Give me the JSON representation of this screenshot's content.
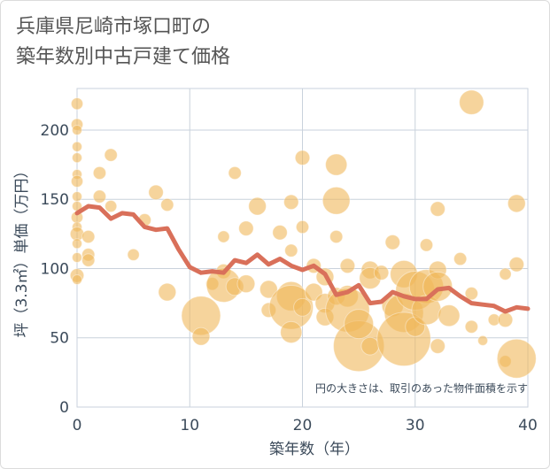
{
  "title_line1": "兵庫県尼崎市塚口町の",
  "title_line2": "築年数別中古戸建て価格",
  "chart_data": {
    "type": "scatter",
    "title": "兵庫県尼崎市塚口町の築年数別中古戸建て価格",
    "xlabel": "築年数（年）",
    "ylabel": "坪（3.3㎡）単価（万円）",
    "annotation": "円の大きさは、取引のあった物件面積を示す",
    "xlim": [
      0,
      40
    ],
    "ylim": [
      0,
      230
    ],
    "x_ticks": [
      0,
      10,
      20,
      30,
      40
    ],
    "y_ticks": [
      0,
      50,
      100,
      150,
      200
    ],
    "grid": true,
    "colors": {
      "bubble": "#f0b85a",
      "line": "#d9705a",
      "grid": "#c9d2dc"
    },
    "bubbles": [
      {
        "x": 0,
        "y": 219,
        "s": 1.2
      },
      {
        "x": 0,
        "y": 204,
        "s": 1.2
      },
      {
        "x": 0,
        "y": 200,
        "s": 1
      },
      {
        "x": 0,
        "y": 188,
        "s": 1
      },
      {
        "x": 0,
        "y": 180,
        "s": 1
      },
      {
        "x": 0,
        "y": 168,
        "s": 1
      },
      {
        "x": 0,
        "y": 163,
        "s": 1.2
      },
      {
        "x": 0,
        "y": 152,
        "s": 1
      },
      {
        "x": 0,
        "y": 145,
        "s": 1
      },
      {
        "x": 0,
        "y": 137,
        "s": 1.2
      },
      {
        "x": 0,
        "y": 130,
        "s": 1
      },
      {
        "x": 0,
        "y": 125,
        "s": 1.4
      },
      {
        "x": 0,
        "y": 118,
        "s": 1
      },
      {
        "x": 0,
        "y": 108,
        "s": 1
      },
      {
        "x": 0,
        "y": 95,
        "s": 1.4
      },
      {
        "x": 0,
        "y": 92,
        "s": 1
      },
      {
        "x": 1,
        "y": 123,
        "s": 1.3
      },
      {
        "x": 1,
        "y": 110,
        "s": 1.3
      },
      {
        "x": 1,
        "y": 106,
        "s": 1.3
      },
      {
        "x": 2,
        "y": 169,
        "s": 1.3
      },
      {
        "x": 2,
        "y": 152,
        "s": 1.3
      },
      {
        "x": 3,
        "y": 182,
        "s": 1.3
      },
      {
        "x": 3,
        "y": 145,
        "s": 1.2
      },
      {
        "x": 5,
        "y": 110,
        "s": 1.2
      },
      {
        "x": 6,
        "y": 135,
        "s": 1.3
      },
      {
        "x": 7,
        "y": 155,
        "s": 1.5
      },
      {
        "x": 8,
        "y": 146,
        "s": 1.3
      },
      {
        "x": 8,
        "y": 83,
        "s": 1.8
      },
      {
        "x": 11,
        "y": 66,
        "s": 4
      },
      {
        "x": 11,
        "y": 51,
        "s": 1.8
      },
      {
        "x": 12,
        "y": 89,
        "s": 1.3
      },
      {
        "x": 13,
        "y": 123,
        "s": 1.2
      },
      {
        "x": 13,
        "y": 98,
        "s": 1.5
      },
      {
        "x": 13,
        "y": 88,
        "s": 3.5
      },
      {
        "x": 14,
        "y": 169,
        "s": 1.3
      },
      {
        "x": 14,
        "y": 87,
        "s": 1.8
      },
      {
        "x": 15,
        "y": 129,
        "s": 1.5
      },
      {
        "x": 15,
        "y": 89,
        "s": 1.8
      },
      {
        "x": 16,
        "y": 145,
        "s": 1.8
      },
      {
        "x": 17,
        "y": 85,
        "s": 1.8
      },
      {
        "x": 17,
        "y": 70,
        "s": 1.5
      },
      {
        "x": 18,
        "y": 126,
        "s": 1.5
      },
      {
        "x": 19,
        "y": 148,
        "s": 1.5
      },
      {
        "x": 19,
        "y": 113,
        "s": 1.3
      },
      {
        "x": 19,
        "y": 80,
        "s": 3
      },
      {
        "x": 19,
        "y": 72,
        "s": 4.5
      },
      {
        "x": 19,
        "y": 54,
        "s": 2.2
      },
      {
        "x": 20,
        "y": 180,
        "s": 1.5
      },
      {
        "x": 20,
        "y": 130,
        "s": 1.3
      },
      {
        "x": 20,
        "y": 72,
        "s": 1.8
      },
      {
        "x": 21,
        "y": 102,
        "s": 1.5
      },
      {
        "x": 21,
        "y": 83,
        "s": 1.8
      },
      {
        "x": 22,
        "y": 94,
        "s": 1.8
      },
      {
        "x": 22,
        "y": 75,
        "s": 2
      },
      {
        "x": 22,
        "y": 65,
        "s": 1.8
      },
      {
        "x": 23,
        "y": 175,
        "s": 2.2
      },
      {
        "x": 23,
        "y": 149,
        "s": 2.8
      },
      {
        "x": 23,
        "y": 123,
        "s": 1.3
      },
      {
        "x": 23,
        "y": 80,
        "s": 1.8
      },
      {
        "x": 24,
        "y": 102,
        "s": 1.5
      },
      {
        "x": 24,
        "y": 80,
        "s": 2.2
      },
      {
        "x": 24,
        "y": 70,
        "s": 4.5
      },
      {
        "x": 25,
        "y": 44,
        "s": 5.2
      },
      {
        "x": 25,
        "y": 60,
        "s": 3
      },
      {
        "x": 26,
        "y": 99,
        "s": 1.8
      },
      {
        "x": 26,
        "y": 93,
        "s": 2.2
      },
      {
        "x": 26,
        "y": 44,
        "s": 1.8
      },
      {
        "x": 27,
        "y": 97,
        "s": 1.5
      },
      {
        "x": 28,
        "y": 119,
        "s": 1.5
      },
      {
        "x": 28,
        "y": 73,
        "s": 2.2
      },
      {
        "x": 29,
        "y": 96,
        "s": 2.8
      },
      {
        "x": 29,
        "y": 68,
        "s": 4
      },
      {
        "x": 29,
        "y": 49,
        "s": 5.5
      },
      {
        "x": 30,
        "y": 84,
        "s": 4
      },
      {
        "x": 30,
        "y": 58,
        "s": 2
      },
      {
        "x": 31,
        "y": 117,
        "s": 1.3
      },
      {
        "x": 31,
        "y": 87,
        "s": 3.5
      },
      {
        "x": 31,
        "y": 70,
        "s": 3
      },
      {
        "x": 32,
        "y": 143,
        "s": 1.5
      },
      {
        "x": 32,
        "y": 99,
        "s": 1.8
      },
      {
        "x": 32,
        "y": 87,
        "s": 3
      },
      {
        "x": 32,
        "y": 44,
        "s": 1.5
      },
      {
        "x": 33,
        "y": 66,
        "s": 2.2
      },
      {
        "x": 34,
        "y": 107,
        "s": 1.3
      },
      {
        "x": 35,
        "y": 220,
        "s": 2.5
      },
      {
        "x": 35,
        "y": 82,
        "s": 1.3
      },
      {
        "x": 35,
        "y": 58,
        "s": 1.3
      },
      {
        "x": 36,
        "y": 48,
        "s": 1
      },
      {
        "x": 37,
        "y": 63,
        "s": 1.2
      },
      {
        "x": 38,
        "y": 96,
        "s": 1.2
      },
      {
        "x": 38,
        "y": 63,
        "s": 1.5
      },
      {
        "x": 38,
        "y": 33,
        "s": 1.2
      },
      {
        "x": 39,
        "y": 147,
        "s": 1.8
      },
      {
        "x": 39,
        "y": 103,
        "s": 1.5
      },
      {
        "x": 39,
        "y": 35,
        "s": 4
      }
    ],
    "line": {
      "x": [
        0,
        1,
        2,
        3,
        4,
        5,
        6,
        7,
        8,
        9,
        10,
        11,
        12,
        13,
        14,
        15,
        16,
        17,
        18,
        19,
        20,
        21,
        22,
        23,
        24,
        25,
        26,
        27,
        28,
        29,
        30,
        31,
        32,
        33,
        34,
        35,
        36,
        37,
        38,
        39,
        40
      ],
      "y": [
        140,
        145,
        144,
        136,
        140,
        139,
        130,
        128,
        129,
        114,
        101,
        97,
        98,
        97,
        106,
        104,
        110,
        103,
        107,
        102,
        99,
        102,
        96,
        81,
        83,
        88,
        75,
        76,
        83,
        80,
        78,
        78,
        85,
        86,
        80,
        75,
        74,
        73,
        69,
        72,
        71
      ]
    }
  }
}
